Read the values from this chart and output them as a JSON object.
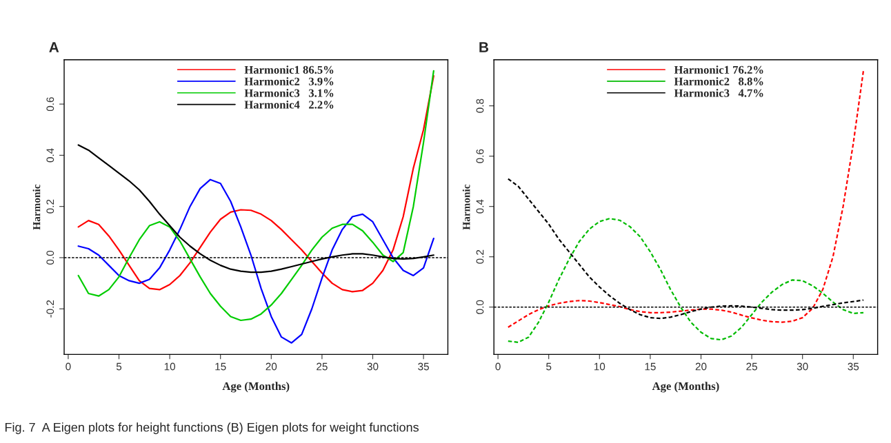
{
  "chart_data": [
    {
      "type": "line",
      "title": "A",
      "xlabel": "Age (Months)",
      "ylabel": "Harmonic",
      "line_style": "solid",
      "legend": "top",
      "grid": false,
      "x": [
        1,
        2,
        3,
        4,
        5,
        6,
        7,
        8,
        9,
        10,
        11,
        12,
        13,
        14,
        15,
        16,
        17,
        18,
        19,
        20,
        21,
        22,
        23,
        24,
        25,
        26,
        27,
        28,
        29,
        30,
        31,
        32,
        33,
        34,
        35,
        36
      ],
      "xlim": [
        -0.4,
        37.4
      ],
      "xticks": [
        0,
        5,
        10,
        15,
        20,
        25,
        30,
        35
      ],
      "ylim": [
        -0.378,
        0.773
      ],
      "yticks": [
        -0.2,
        {
          "value": 0,
          "label": "0.0"
        },
        0.2,
        0.4,
        0.6
      ],
      "ref_lines": [
        {
          "axis": "y",
          "value": 0,
          "color": "#000000",
          "line_style": "dashed"
        }
      ],
      "annotations": [
        "Fig. 7  A Eigen plots for height functions (B) Eigen plots for weight functions"
      ],
      "series": [
        {
          "name": "Harmonic1 86.5%",
          "color": "#ff0000",
          "values": [
            0.12,
            0.145,
            0.13,
            0.085,
            0.03,
            -0.03,
            -0.09,
            -0.12,
            -0.125,
            -0.105,
            -0.07,
            -0.02,
            0.04,
            0.1,
            0.15,
            0.178,
            0.187,
            0.185,
            0.17,
            0.145,
            0.11,
            0.07,
            0.03,
            -0.015,
            -0.06,
            -0.1,
            -0.125,
            -0.133,
            -0.128,
            -0.1,
            -0.05,
            0.03,
            0.16,
            0.35,
            0.5,
            0.71
          ]
        },
        {
          "name": "Harmonic2   3.9%",
          "color": "#0000ff",
          "values": [
            0.045,
            0.035,
            0.01,
            -0.03,
            -0.07,
            -0.09,
            -0.1,
            -0.085,
            -0.04,
            0.03,
            0.11,
            0.2,
            0.27,
            0.305,
            0.29,
            0.22,
            0.12,
            0.01,
            -0.12,
            -0.23,
            -0.31,
            -0.333,
            -0.3,
            -0.2,
            -0.08,
            0.03,
            0.11,
            0.16,
            0.17,
            0.14,
            0.07,
            0.0,
            -0.05,
            -0.07,
            -0.04,
            0.075
          ]
        },
        {
          "name": "Harmonic3   3.1%",
          "color": "#00cc00",
          "values": [
            -0.07,
            -0.14,
            -0.15,
            -0.125,
            -0.075,
            0.0,
            0.07,
            0.125,
            0.14,
            0.12,
            0.065,
            -0.005,
            -0.075,
            -0.14,
            -0.19,
            -0.23,
            -0.245,
            -0.24,
            -0.22,
            -0.185,
            -0.14,
            -0.085,
            -0.03,
            0.03,
            0.08,
            0.115,
            0.13,
            0.13,
            0.105,
            0.06,
            0.01,
            -0.015,
            0.02,
            0.2,
            0.45,
            0.73
          ]
        },
        {
          "name": "Harmonic4   2.2%",
          "color": "#000000",
          "values": [
            0.44,
            0.42,
            0.39,
            0.36,
            0.33,
            0.3,
            0.265,
            0.22,
            0.17,
            0.125,
            0.08,
            0.045,
            0.015,
            -0.01,
            -0.03,
            -0.045,
            -0.053,
            -0.057,
            -0.057,
            -0.053,
            -0.045,
            -0.035,
            -0.025,
            -0.015,
            -0.005,
            0.003,
            0.01,
            0.015,
            0.015,
            0.01,
            0.003,
            -0.003,
            -0.005,
            -0.003,
            0.003,
            0.01
          ]
        }
      ]
    },
    {
      "type": "line",
      "title": "B",
      "xlabel": "Age (Months)",
      "ylabel": "Harmonic",
      "line_style": "dashed",
      "legend": "top",
      "grid": false,
      "x": [
        1,
        2,
        3,
        4,
        5,
        6,
        7,
        8,
        9,
        10,
        11,
        12,
        13,
        14,
        15,
        16,
        17,
        18,
        19,
        20,
        21,
        22,
        23,
        24,
        25,
        26,
        27,
        28,
        29,
        30,
        31,
        32,
        33,
        34,
        35,
        36
      ],
      "xlim": [
        -0.4,
        37.4
      ],
      "xticks": [
        0,
        5,
        10,
        15,
        20,
        25,
        30,
        35
      ],
      "ylim": [
        -0.188,
        0.983
      ],
      "yticks": [
        {
          "value": 0,
          "label": "0.0"
        },
        0.2,
        0.4,
        0.6,
        0.8
      ],
      "ref_lines": [
        {
          "axis": "y",
          "value": 0,
          "color": "#000000",
          "line_style": "dashed"
        }
      ],
      "series": [
        {
          "name": "Harmonic1 76.2%",
          "color": "#ff0000",
          "values": [
            -0.08,
            -0.055,
            -0.03,
            -0.01,
            0.005,
            0.015,
            0.022,
            0.026,
            0.024,
            0.018,
            0.01,
            0.002,
            -0.01,
            -0.018,
            -0.022,
            -0.022,
            -0.02,
            -0.016,
            -0.012,
            -0.008,
            -0.008,
            -0.012,
            -0.02,
            -0.032,
            -0.043,
            -0.052,
            -0.058,
            -0.06,
            -0.056,
            -0.042,
            -0.005,
            0.07,
            0.2,
            0.4,
            0.65,
            0.94
          ]
        },
        {
          "name": "Harmonic2   8.8%",
          "color": "#00bb00",
          "values": [
            -0.135,
            -0.14,
            -0.12,
            -0.06,
            0.02,
            0.11,
            0.19,
            0.26,
            0.31,
            0.34,
            0.352,
            0.345,
            0.32,
            0.28,
            0.22,
            0.15,
            0.07,
            0.0,
            -0.06,
            -0.1,
            -0.125,
            -0.13,
            -0.115,
            -0.08,
            -0.03,
            0.02,
            0.06,
            0.09,
            0.108,
            0.105,
            0.085,
            0.055,
            0.02,
            -0.01,
            -0.025,
            -0.022
          ]
        },
        {
          "name": "Harmonic3   4.7%",
          "color": "#000000",
          "values": [
            0.51,
            0.48,
            0.43,
            0.38,
            0.33,
            0.27,
            0.22,
            0.17,
            0.12,
            0.08,
            0.045,
            0.015,
            -0.01,
            -0.03,
            -0.042,
            -0.045,
            -0.04,
            -0.03,
            -0.018,
            -0.008,
            0.0,
            0.004,
            0.005,
            0.004,
            0.0,
            -0.005,
            -0.01,
            -0.012,
            -0.012,
            -0.01,
            -0.005,
            0.003,
            0.01,
            0.017,
            0.022,
            0.028
          ]
        }
      ]
    }
  ]
}
